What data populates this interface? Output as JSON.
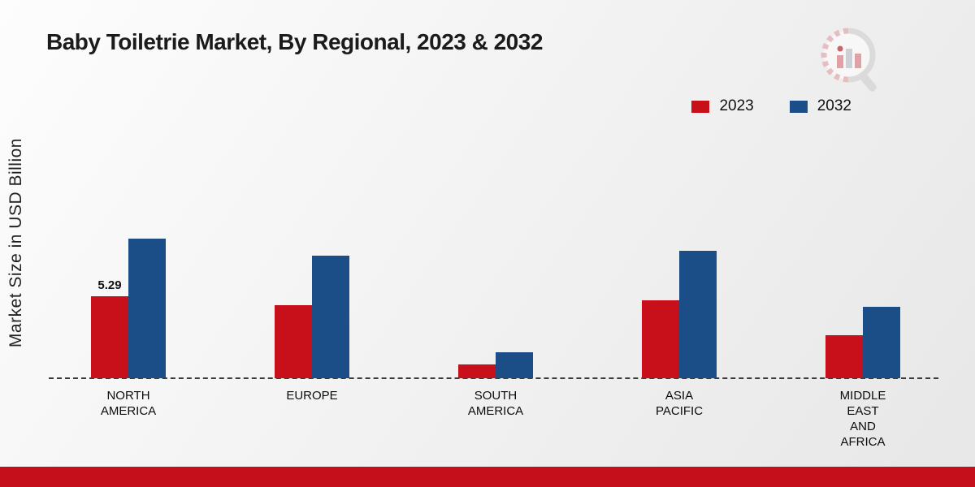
{
  "title": "Baby Toiletrie Market, By Regional, 2023 & 2032",
  "y_axis_label": "Market Size in USD Billion",
  "legend": [
    {
      "label": "2023",
      "color": "#c8101a"
    },
    {
      "label": "2032",
      "color": "#1b4e87"
    }
  ],
  "colors": {
    "series_2023": "#c8101a",
    "series_2032": "#1b4e87",
    "footer_strip": "#c50f1a",
    "baseline": "#3a3a3a"
  },
  "chart_data": {
    "type": "bar",
    "title": "Baby Toiletrie Market, By Regional, 2023 & 2032",
    "xlabel": "",
    "ylabel": "Market Size in USD Billion",
    "ylim": [
      0,
      10
    ],
    "grid": false,
    "legend_position": "top-right",
    "categories": [
      "NORTH AMERICA",
      "EUROPE",
      "SOUTH AMERICA",
      "ASIA PACIFIC",
      "MIDDLE EAST AND AFRICA"
    ],
    "category_label_lines": [
      [
        "NORTH",
        "AMERICA"
      ],
      [
        "EUROPE"
      ],
      [
        "SOUTH",
        "AMERICA"
      ],
      [
        "ASIA",
        "PACIFIC"
      ],
      [
        "MIDDLE",
        "EAST",
        "AND",
        "AFRICA"
      ]
    ],
    "series": [
      {
        "name": "2023",
        "color": "#c8101a",
        "values": [
          5.29,
          4.7,
          0.9,
          5.0,
          2.8
        ],
        "data_labels": [
          "5.29",
          "",
          "",
          "",
          ""
        ]
      },
      {
        "name": "2032",
        "color": "#1b4e87",
        "values": [
          9.0,
          7.9,
          1.7,
          8.2,
          4.6
        ],
        "data_labels": [
          "",
          "",
          "",
          "",
          ""
        ]
      }
    ]
  }
}
